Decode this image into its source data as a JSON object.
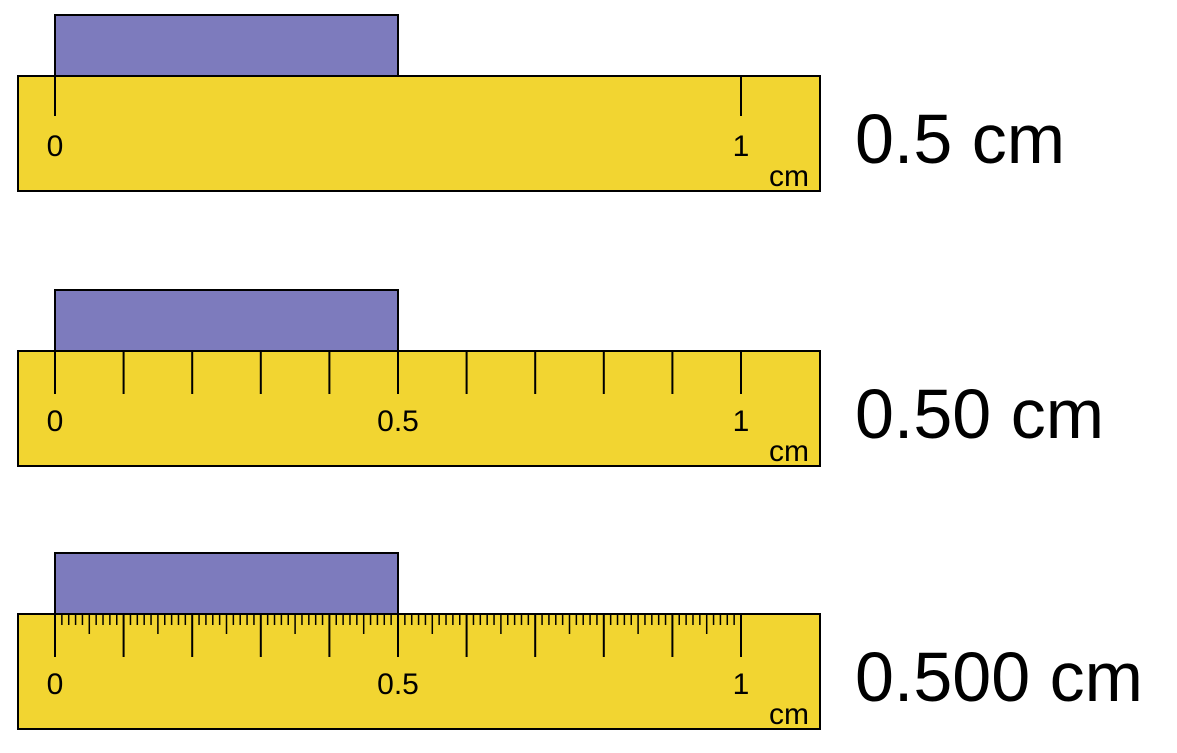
{
  "colors": {
    "ruler_fill": "#f2d531",
    "object_fill": "#7d7bbd",
    "stroke": "#000000"
  },
  "object_length_cm": 0.5,
  "rulers": [
    {
      "subdivision_cm": 1,
      "labels": [
        "0",
        "1"
      ],
      "label_values_cm": [
        0,
        1
      ],
      "unit": "cm",
      "reading": "0.5 cm"
    },
    {
      "subdivision_cm": 0.1,
      "labels": [
        "0",
        "0.5",
        "1"
      ],
      "label_values_cm": [
        0,
        0.5,
        1
      ],
      "unit": "cm",
      "reading": "0.50 cm"
    },
    {
      "subdivision_cm": 0.01,
      "labels": [
        "0",
        "0.5",
        "1"
      ],
      "label_values_cm": [
        0,
        0.5,
        1
      ],
      "unit": "cm",
      "reading": "0.500 cm"
    }
  ]
}
